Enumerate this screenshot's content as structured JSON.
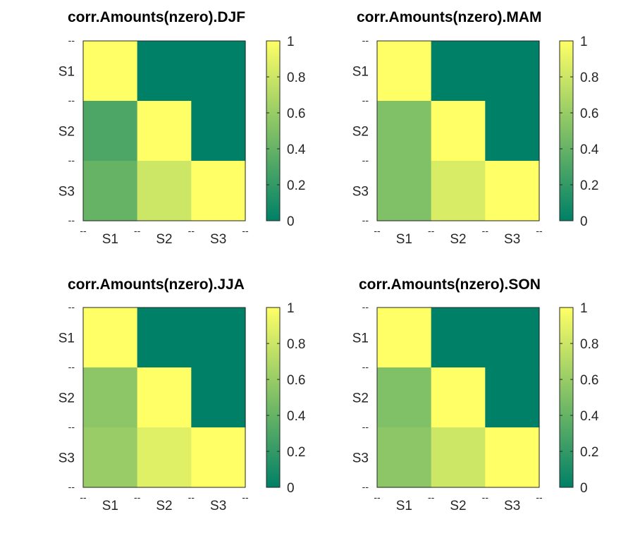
{
  "chart_data": [
    {
      "type": "heatmap",
      "title": "corr.Amounts(nzero).DJF",
      "x_labels": [
        "S1",
        "S2",
        "S3"
      ],
      "y_labels": [
        "S1",
        "S2",
        "S3"
      ],
      "boundary_label": "--",
      "values": [
        [
          1,
          0,
          0
        ],
        [
          0.3,
          1,
          0
        ],
        [
          0.4,
          0.8,
          1
        ]
      ],
      "colorbar": {
        "range": [
          0,
          1
        ],
        "ticks": [
          "0",
          "0.2",
          "0.4",
          "0.6",
          "0.8",
          "1"
        ]
      }
    },
    {
      "type": "heatmap",
      "title": "corr.Amounts(nzero).MAM",
      "x_labels": [
        "S1",
        "S2",
        "S3"
      ],
      "y_labels": [
        "S1",
        "S2",
        "S3"
      ],
      "boundary_label": "--",
      "values": [
        [
          1,
          0,
          0
        ],
        [
          0.5,
          1,
          0
        ],
        [
          0.5,
          0.85,
          1
        ]
      ],
      "colorbar": {
        "range": [
          0,
          1
        ],
        "ticks": [
          "0",
          "0.2",
          "0.4",
          "0.6",
          "0.8",
          "1"
        ]
      }
    },
    {
      "type": "heatmap",
      "title": "corr.Amounts(nzero).JJA",
      "x_labels": [
        "S1",
        "S2",
        "S3"
      ],
      "y_labels": [
        "S1",
        "S2",
        "S3"
      ],
      "boundary_label": "--",
      "values": [
        [
          1,
          0,
          0
        ],
        [
          0.55,
          1,
          0
        ],
        [
          0.6,
          0.88,
          1
        ]
      ],
      "colorbar": {
        "range": [
          0,
          1
        ],
        "ticks": [
          "0",
          "0.2",
          "0.4",
          "0.6",
          "0.8",
          "1"
        ]
      }
    },
    {
      "type": "heatmap",
      "title": "corr.Amounts(nzero).SON",
      "x_labels": [
        "S1",
        "S2",
        "S3"
      ],
      "y_labels": [
        "S1",
        "S2",
        "S3"
      ],
      "boundary_label": "--",
      "values": [
        [
          1,
          0,
          0
        ],
        [
          0.5,
          1,
          0
        ],
        [
          0.55,
          0.8,
          1
        ]
      ],
      "colorbar": {
        "range": [
          0,
          1
        ],
        "ticks": [
          "0",
          "0.2",
          "0.4",
          "0.6",
          "0.8",
          "1"
        ]
      }
    }
  ],
  "colormap": {
    "name": "summer",
    "low_color": "#008066",
    "high_color": "#ffff66"
  }
}
